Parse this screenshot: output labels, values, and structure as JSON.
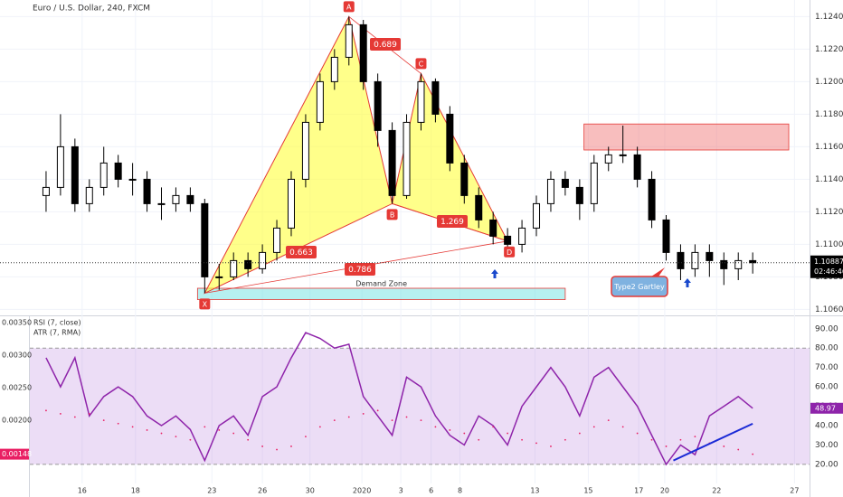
{
  "chart_data": [
    {
      "type": "candlestick",
      "title": "Euro / U.S. Dollar, 240, FXCM",
      "up_color": "#ffffff",
      "down_color": "#000000",
      "open": [
        1.113,
        1.1135,
        1.116,
        1.1125,
        1.1135,
        1.115,
        1.114,
        1.114,
        1.1125,
        1.1125,
        1.113,
        1.1125,
        1.108,
        1.108,
        1.109,
        1.1085,
        1.1095,
        1.111,
        1.114,
        1.1175,
        1.12,
        1.1215,
        1.1235,
        1.12,
        1.117,
        1.113,
        1.1175,
        1.12,
        1.118,
        1.115,
        1.113,
        1.1115,
        1.1105,
        1.11,
        1.111,
        1.1125,
        1.114,
        1.1135,
        1.1125,
        1.115,
        1.1155,
        1.1155,
        1.114,
        1.1115,
        1.1095,
        1.1085,
        1.1095,
        1.109,
        1.1085,
        1.109
      ],
      "high": [
        1.1145,
        1.118,
        1.1165,
        1.114,
        1.116,
        1.1155,
        1.115,
        1.1145,
        1.1135,
        1.1135,
        1.1135,
        1.1128,
        1.1088,
        1.1095,
        1.1095,
        1.11,
        1.1115,
        1.1145,
        1.118,
        1.1205,
        1.122,
        1.124,
        1.1238,
        1.1205,
        1.1175,
        1.118,
        1.1205,
        1.1202,
        1.1185,
        1.1155,
        1.1135,
        1.112,
        1.111,
        1.1115,
        1.113,
        1.1145,
        1.1145,
        1.114,
        1.1155,
        1.116,
        1.1173,
        1.116,
        1.1145,
        1.1118,
        1.11,
        1.11,
        1.11,
        1.1095,
        1.1095,
        1.1095
      ],
      "low": [
        1.112,
        1.113,
        1.112,
        1.112,
        1.113,
        1.1135,
        1.113,
        1.112,
        1.1115,
        1.112,
        1.112,
        1.107,
        1.1072,
        1.1078,
        1.108,
        1.1082,
        1.109,
        1.1105,
        1.1135,
        1.117,
        1.1195,
        1.121,
        1.1195,
        1.116,
        1.1125,
        1.1128,
        1.117,
        1.1175,
        1.1145,
        1.1125,
        1.111,
        1.11,
        1.1095,
        1.1095,
        1.1105,
        1.112,
        1.113,
        1.1115,
        1.112,
        1.1145,
        1.115,
        1.1135,
        1.111,
        1.109,
        1.1078,
        1.108,
        1.108,
        1.1075,
        1.1078,
        1.1082
      ],
      "close": [
        1.1135,
        1.116,
        1.1125,
        1.1135,
        1.115,
        1.114,
        1.114,
        1.1125,
        1.1125,
        1.113,
        1.1125,
        1.108,
        1.108,
        1.109,
        1.1085,
        1.1095,
        1.111,
        1.114,
        1.1175,
        1.12,
        1.1215,
        1.1235,
        1.12,
        1.117,
        1.113,
        1.1175,
        1.12,
        1.118,
        1.115,
        1.113,
        1.1115,
        1.1105,
        1.11,
        1.111,
        1.1125,
        1.114,
        1.1135,
        1.1125,
        1.115,
        1.1155,
        1.1155,
        1.114,
        1.1115,
        1.1095,
        1.1085,
        1.1095,
        1.109,
        1.1085,
        1.109,
        1.10887
      ],
      "xlim": [
        -1,
        52
      ],
      "ylim": [
        1.1058,
        1.1248
      ],
      "yticks": [
        {
          "value": 1.106,
          "label": "1.10600"
        },
        {
          "value": 1.108,
          "label": "1.10800"
        },
        {
          "value": 1.11,
          "label": "1.11000"
        },
        {
          "value": 1.112,
          "label": "1.11200"
        },
        {
          "value": 1.114,
          "label": "1.11400"
        },
        {
          "value": 1.116,
          "label": "1.11600"
        },
        {
          "value": 1.118,
          "label": "1.11800"
        },
        {
          "value": 1.12,
          "label": "1.12000"
        },
        {
          "value": 1.122,
          "label": "1.12200"
        },
        {
          "value": 1.124,
          "label": "1.12400"
        }
      ],
      "last_price": 1.10887,
      "countdown": "02:46:46",
      "pattern": {
        "name": "Type2 Gartley",
        "points": [
          {
            "label": "X",
            "x": 11,
            "y": 1.107
          },
          {
            "label": "A",
            "x": 21,
            "y": 1.124
          },
          {
            "label": "B",
            "x": 24,
            "y": 1.1125
          },
          {
            "label": "C",
            "x": 26,
            "y": 1.1205
          },
          {
            "label": "D",
            "x": 32,
            "y": 1.1102
          }
        ],
        "ratios": [
          0.689,
          0.663,
          0.786,
          1.269
        ]
      },
      "zones": [
        {
          "label": "Demand Zone",
          "x": [
            10.5,
            36
          ],
          "y": [
            1.1066,
            1.1073
          ]
        },
        {
          "x": [
            37.3,
            51.5
          ],
          "y": [
            1.1158,
            1.1174
          ]
        }
      ]
    },
    {
      "type": "line",
      "series": [
        {
          "name": "RSI (7, close)",
          "color": "#8e24aa",
          "values": [
            75,
            60,
            75,
            45,
            55,
            60,
            55,
            45,
            40,
            45,
            38,
            22,
            40,
            45,
            35,
            55,
            60,
            75,
            88,
            85,
            80,
            82,
            55,
            45,
            35,
            65,
            60,
            45,
            35,
            30,
            45,
            40,
            30,
            50,
            60,
            70,
            60,
            45,
            65,
            70,
            60,
            50,
            35,
            20,
            30,
            25,
            45,
            50,
            55,
            48.97
          ]
        },
        {
          "name": "ATR (7, RMA)",
          "color": "#e91e63",
          "axis": "y2",
          "values": [
            0.00215,
            0.0021,
            0.00205,
            0.0021,
            0.002,
            0.00195,
            0.0019,
            0.00185,
            0.0018,
            0.00175,
            0.0017,
            0.0019,
            0.00185,
            0.0018,
            0.0017,
            0.0016,
            0.00155,
            0.0016,
            0.00175,
            0.0019,
            0.002,
            0.00205,
            0.0021,
            0.00215,
            0.002,
            0.00205,
            0.002,
            0.0019,
            0.00185,
            0.0018,
            0.0017,
            0.0019,
            0.0018,
            0.0017,
            0.00165,
            0.0016,
            0.0017,
            0.0018,
            0.0019,
            0.002,
            0.0019,
            0.0018,
            0.0017,
            0.0016,
            0.0017,
            0.00175,
            0.00165,
            0.0016,
            0.00155,
            0.00148
          ]
        }
      ],
      "xlim": [
        -1,
        52
      ],
      "xticks": [
        {
          "value": 2.5,
          "label": "16"
        },
        {
          "value": 6.2,
          "label": "18"
        },
        {
          "value": 11.5,
          "label": "23"
        },
        {
          "value": 15,
          "label": "26"
        },
        {
          "value": 18.3,
          "label": "30"
        },
        {
          "value": 21.9,
          "label": "2020"
        },
        {
          "value": 24.6,
          "label": "3"
        },
        {
          "value": 26.7,
          "label": "6"
        },
        {
          "value": 28.7,
          "label": "8"
        },
        {
          "value": 33.9,
          "label": "13"
        },
        {
          "value": 37.6,
          "label": "15"
        },
        {
          "value": 41.1,
          "label": "17"
        },
        {
          "value": 42.9,
          "label": "20"
        },
        {
          "value": 46.5,
          "label": "22"
        },
        {
          "value": 51.9,
          "label": "27"
        }
      ],
      "ylim": [
        4.1,
        95.5
      ],
      "yticks": [
        {
          "value": 20,
          "label": "20.00"
        },
        {
          "value": 30,
          "label": "30.00"
        },
        {
          "value": 40,
          "label": "40.00"
        },
        {
          "value": 50,
          "label": "50.00"
        },
        {
          "value": 60,
          "label": "60.00"
        },
        {
          "value": 70,
          "label": "70.00"
        },
        {
          "value": 80,
          "label": "80.00"
        },
        {
          "value": 90,
          "label": "90.00"
        }
      ],
      "y2lim": [
        0.00085,
        0.00357
      ],
      "y2ticks": [
        {
          "value": 0.002,
          "label": "0.00200"
        },
        {
          "value": 0.0025,
          "label": "0.00250"
        },
        {
          "value": 0.003,
          "label": "0.00300"
        },
        {
          "value": 0.0035,
          "label": "0.00350"
        }
      ],
      "bands": [
        20,
        80
      ],
      "trendline": {
        "x": [
          43.5,
          49
        ],
        "values": [
          22,
          41
        ]
      }
    }
  ]
}
